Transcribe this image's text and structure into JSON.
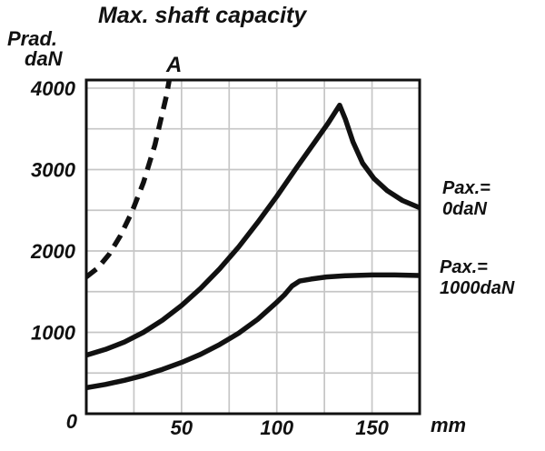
{
  "title": "Max. shaft capacity",
  "y_axis_unit_line1": "Prad.",
  "y_axis_unit_line2": "daN",
  "x_axis_unit": "mm",
  "origin_label": "0",
  "curve_a_label": "A",
  "series_labels": {
    "pax0_line1": "Pax.=",
    "pax0_line2": "0daN",
    "pax1000_line1": "Pax.=",
    "pax1000_line2": "1000daN"
  },
  "chart_data": {
    "type": "line",
    "title": "Max. shaft capacity",
    "xlabel": "mm",
    "ylabel": "Prad. daN",
    "xlim": [
      0,
      175
    ],
    "ylim": [
      0,
      4100
    ],
    "x_ticks": [
      50,
      100,
      150
    ],
    "y_ticks": [
      1000,
      2000,
      3000,
      4000
    ],
    "grid": {
      "on": true,
      "x_step": 25,
      "y_step": 500
    },
    "legend_position": "right-outside",
    "colors": {
      "curve": "#111111",
      "grid": "#c6c6c6",
      "frame": "#111111"
    },
    "series": [
      {
        "id": "a",
        "name": "A",
        "style": "dashed",
        "points": [
          [
            0,
            1680
          ],
          [
            6,
            1790
          ],
          [
            12,
            1960
          ],
          [
            18,
            2190
          ],
          [
            24,
            2480
          ],
          [
            30,
            2840
          ],
          [
            36,
            3300
          ],
          [
            42,
            3900
          ],
          [
            47,
            4550
          ]
        ]
      },
      {
        "id": "pax-0",
        "name": "Pax.= 0daN",
        "style": "solid",
        "points": [
          [
            0,
            720
          ],
          [
            10,
            790
          ],
          [
            20,
            880
          ],
          [
            30,
            1000
          ],
          [
            40,
            1150
          ],
          [
            50,
            1330
          ],
          [
            60,
            1540
          ],
          [
            70,
            1780
          ],
          [
            80,
            2050
          ],
          [
            90,
            2350
          ],
          [
            100,
            2670
          ],
          [
            110,
            3010
          ],
          [
            120,
            3340
          ],
          [
            127,
            3570
          ],
          [
            133,
            3790
          ],
          [
            136,
            3620
          ],
          [
            140,
            3340
          ],
          [
            145,
            3080
          ],
          [
            151,
            2890
          ],
          [
            158,
            2740
          ],
          [
            166,
            2620
          ],
          [
            175,
            2530
          ]
        ]
      },
      {
        "id": "pax-1000",
        "name": "Pax.= 1000daN",
        "style": "solid",
        "points": [
          [
            0,
            320
          ],
          [
            10,
            360
          ],
          [
            20,
            410
          ],
          [
            30,
            470
          ],
          [
            40,
            545
          ],
          [
            50,
            630
          ],
          [
            60,
            730
          ],
          [
            70,
            850
          ],
          [
            80,
            990
          ],
          [
            90,
            1160
          ],
          [
            100,
            1370
          ],
          [
            104,
            1460
          ],
          [
            108,
            1570
          ],
          [
            112,
            1630
          ],
          [
            118,
            1655
          ],
          [
            126,
            1680
          ],
          [
            136,
            1695
          ],
          [
            150,
            1705
          ],
          [
            162,
            1705
          ],
          [
            175,
            1698
          ]
        ]
      }
    ]
  }
}
